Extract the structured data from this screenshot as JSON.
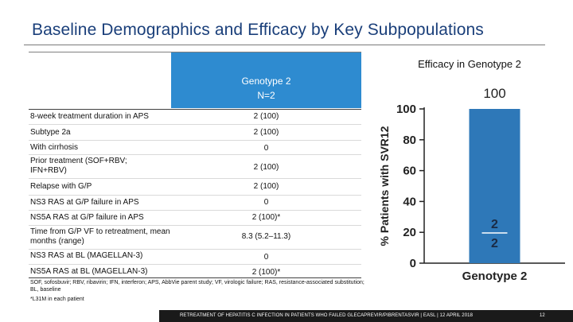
{
  "slide": {
    "title": "Baseline Demographics and Efficacy by Key Subpopulations"
  },
  "table": {
    "column_header": {
      "line1": "Genotype 2",
      "line2": "N=2"
    },
    "rows": [
      {
        "label": "8-week treatment duration in APS",
        "value": "2 (100)"
      },
      {
        "label": "Subtype 2a",
        "value": "2 (100)"
      },
      {
        "label": "With cirrhosis",
        "value": "0"
      },
      {
        "label": "Prior treatment (SOF+RBV; IFN+RBV)",
        "value": "2 (100)"
      },
      {
        "label": "Relapse with G/P",
        "value": "2 (100)"
      },
      {
        "label": "NS3 RAS at G/P failure in APS",
        "value": "0"
      },
      {
        "label": "NS5A RAS at G/P failure in APS",
        "value": "2 (100)*"
      },
      {
        "label": "Time from G/P VF to retreatment, mean months (range)",
        "value": "8.3 (5.2–11.3)"
      },
      {
        "label": "NS3 RAS at BL (MAGELLAN-3)",
        "value": "0"
      },
      {
        "label": "NS5A RAS at BL (MAGELLAN-3)",
        "value": "2 (100)*"
      }
    ]
  },
  "footnotes": {
    "abbreviations": "SOF, sofosbuvir; RBV, ribavirin; IFN, interferon; APS, AbbVie parent study; VF, virologic failure; RAS, resistance-associated substitution; BL, baseline",
    "asterisk": "*L31M in each patient"
  },
  "chart_data": {
    "type": "bar",
    "title": "Efficacy in Genotype 2",
    "categories": [
      "Genotype 2"
    ],
    "values": [
      100
    ],
    "value_label": "100",
    "fraction_numerator": "2",
    "fraction_denominator": "2",
    "ylabel": "% Patients with SVR12",
    "xlabel": "",
    "ylim": [
      0,
      100
    ],
    "yticks": [
      "0",
      "20",
      "40",
      "60",
      "80",
      "100"
    ],
    "bar_color": "#2e78b8"
  },
  "footer": {
    "text": "RETREATMENT OF HEPATITIS C INFECTION IN PATIENTS WHO FAILED GLECAPREVIR/PIBRENTASVIR | EASL | 12 APRIL 2018",
    "page_number": "12"
  }
}
